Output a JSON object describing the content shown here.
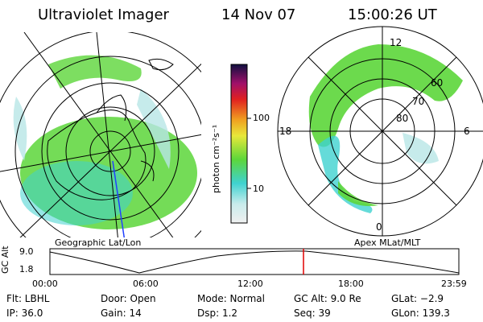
{
  "header": {
    "title": "Ultraviolet Imager",
    "date": "14 Nov 07",
    "time": "15:00:26 UT"
  },
  "colorbar": {
    "label": "photon cm⁻²s⁻¹",
    "ticks": [
      "100",
      "10"
    ]
  },
  "panels": {
    "left_caption": "Geographic Lat/Lon",
    "right_caption": "Apex MLat/MLT"
  },
  "polar_labels": {
    "mlt": [
      "12",
      "18",
      "6",
      "0"
    ],
    "mlat": [
      "60",
      "70",
      "80"
    ]
  },
  "altitude_plot": {
    "ylabel": "GC Alt",
    "yticks": [
      "9.0",
      "1.8"
    ],
    "xticks": [
      "00:00",
      "06:00",
      "12:00",
      "18:00",
      "23:59"
    ],
    "current_time_marker": "15:00:26"
  },
  "info": {
    "flt": "Flt: LBHL",
    "ip": "IP: 36.0",
    "door": "Door: Open",
    "gain": "Gain: 14",
    "mode": "Mode: Normal",
    "dsp": "Dsp:    1.2",
    "gcalt": "GC Alt: 9.0 Re",
    "seq": "Seq: 39",
    "glat": "GLat: −2.9",
    "glon": "GLon: 139.3"
  },
  "colors": {
    "aurora_green": "#5cd63a",
    "aurora_cyan": "#3fd2d0",
    "aurora_pale": "#b8e6e6",
    "marker": "#e00000"
  }
}
